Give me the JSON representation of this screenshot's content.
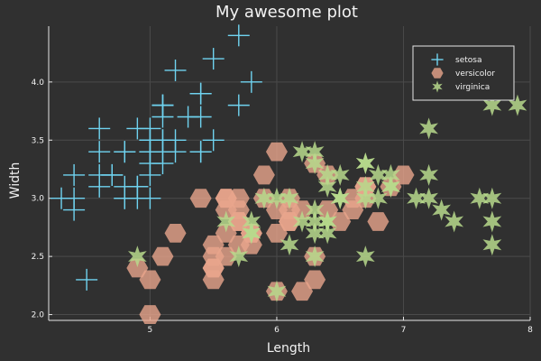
{
  "chart_data": {
    "type": "scatter",
    "title": "My awesome plot",
    "xlabel": "Length",
    "ylabel": "Width",
    "xlim": [
      4.2,
      8.0
    ],
    "ylim": [
      1.95,
      4.48
    ],
    "xticks": [
      5,
      6,
      7,
      8
    ],
    "yticks": [
      2.0,
      2.5,
      3.0,
      3.5,
      4.0
    ],
    "grid": true,
    "legend_position": "top-right",
    "background": "#303030",
    "series": [
      {
        "name": "setosa",
        "marker": "cross",
        "color": "#6fd3f0",
        "points": [
          [
            5.1,
            3.5
          ],
          [
            4.9,
            3.0
          ],
          [
            4.7,
            3.2
          ],
          [
            4.6,
            3.1
          ],
          [
            5.0,
            3.6
          ],
          [
            5.4,
            3.9
          ],
          [
            4.6,
            3.4
          ],
          [
            5.0,
            3.4
          ],
          [
            4.4,
            2.9
          ],
          [
            4.9,
            3.1
          ],
          [
            5.4,
            3.7
          ],
          [
            4.8,
            3.4
          ],
          [
            4.8,
            3.0
          ],
          [
            4.3,
            3.0
          ],
          [
            5.8,
            4.0
          ],
          [
            5.7,
            4.4
          ],
          [
            5.4,
            3.9
          ],
          [
            5.1,
            3.5
          ],
          [
            5.7,
            3.8
          ],
          [
            5.1,
            3.8
          ],
          [
            5.4,
            3.4
          ],
          [
            5.1,
            3.7
          ],
          [
            4.6,
            3.6
          ],
          [
            5.1,
            3.3
          ],
          [
            4.8,
            3.4
          ],
          [
            5.0,
            3.0
          ],
          [
            5.0,
            3.4
          ],
          [
            5.2,
            3.5
          ],
          [
            5.2,
            3.4
          ],
          [
            4.7,
            3.2
          ],
          [
            4.8,
            3.1
          ],
          [
            5.4,
            3.4
          ],
          [
            5.2,
            4.1
          ],
          [
            5.5,
            4.2
          ],
          [
            4.9,
            3.1
          ],
          [
            5.0,
            3.2
          ],
          [
            5.5,
            3.5
          ],
          [
            4.9,
            3.6
          ],
          [
            4.4,
            3.0
          ],
          [
            5.1,
            3.4
          ],
          [
            5.0,
            3.5
          ],
          [
            4.5,
            2.3
          ],
          [
            4.4,
            3.2
          ],
          [
            5.0,
            3.5
          ],
          [
            5.1,
            3.8
          ],
          [
            4.8,
            3.0
          ],
          [
            5.1,
            3.8
          ],
          [
            4.6,
            3.2
          ],
          [
            5.3,
            3.7
          ],
          [
            5.0,
            3.3
          ]
        ]
      },
      {
        "name": "versicolor",
        "marker": "hexagon",
        "color": "#e8a58c",
        "points": [
          [
            7.0,
            3.2
          ],
          [
            6.4,
            3.2
          ],
          [
            6.9,
            3.1
          ],
          [
            5.5,
            2.3
          ],
          [
            6.5,
            2.8
          ],
          [
            5.7,
            2.8
          ],
          [
            6.3,
            3.3
          ],
          [
            4.9,
            2.4
          ],
          [
            6.6,
            2.9
          ],
          [
            5.2,
            2.7
          ],
          [
            5.0,
            2.0
          ],
          [
            5.9,
            3.0
          ],
          [
            6.0,
            2.2
          ],
          [
            6.1,
            2.9
          ],
          [
            5.6,
            2.9
          ],
          [
            6.7,
            3.1
          ],
          [
            5.6,
            3.0
          ],
          [
            5.8,
            2.7
          ],
          [
            6.2,
            2.2
          ],
          [
            5.6,
            2.5
          ],
          [
            5.9,
            3.2
          ],
          [
            6.1,
            2.8
          ],
          [
            6.3,
            2.5
          ],
          [
            6.1,
            2.8
          ],
          [
            6.4,
            2.9
          ],
          [
            6.6,
            3.0
          ],
          [
            6.8,
            2.8
          ],
          [
            6.7,
            3.0
          ],
          [
            6.0,
            2.9
          ],
          [
            5.7,
            2.6
          ],
          [
            5.5,
            2.4
          ],
          [
            5.5,
            2.4
          ],
          [
            5.8,
            2.7
          ],
          [
            6.0,
            2.7
          ],
          [
            5.4,
            3.0
          ],
          [
            6.0,
            3.4
          ],
          [
            6.7,
            3.1
          ],
          [
            6.3,
            2.3
          ],
          [
            5.6,
            3.0
          ],
          [
            5.5,
            2.5
          ],
          [
            5.5,
            2.6
          ],
          [
            6.1,
            3.0
          ],
          [
            5.8,
            2.6
          ],
          [
            5.0,
            2.3
          ],
          [
            5.6,
            2.7
          ],
          [
            5.7,
            3.0
          ],
          [
            5.7,
            2.9
          ],
          [
            6.2,
            2.9
          ],
          [
            5.1,
            2.5
          ],
          [
            5.7,
            2.8
          ]
        ]
      },
      {
        "name": "virginica",
        "marker": "star",
        "color": "#b7d98c",
        "points": [
          [
            6.3,
            3.3
          ],
          [
            5.8,
            2.7
          ],
          [
            7.1,
            3.0
          ],
          [
            6.3,
            2.9
          ],
          [
            6.5,
            3.0
          ],
          [
            7.6,
            3.0
          ],
          [
            4.9,
            2.5
          ],
          [
            7.3,
            2.9
          ],
          [
            6.7,
            2.5
          ],
          [
            7.2,
            3.6
          ],
          [
            6.5,
            3.2
          ],
          [
            6.4,
            2.7
          ],
          [
            6.8,
            3.0
          ],
          [
            5.7,
            2.5
          ],
          [
            5.8,
            2.8
          ],
          [
            6.4,
            3.2
          ],
          [
            6.5,
            3.0
          ],
          [
            7.7,
            3.8
          ],
          [
            7.7,
            2.6
          ],
          [
            6.0,
            2.2
          ],
          [
            6.9,
            3.2
          ],
          [
            5.6,
            2.8
          ],
          [
            7.7,
            2.8
          ],
          [
            6.3,
            2.7
          ],
          [
            6.7,
            3.3
          ],
          [
            7.2,
            3.2
          ],
          [
            6.2,
            2.8
          ],
          [
            6.1,
            3.0
          ],
          [
            6.4,
            2.8
          ],
          [
            7.2,
            3.0
          ],
          [
            7.4,
            2.8
          ],
          [
            7.9,
            3.8
          ],
          [
            6.4,
            2.8
          ],
          [
            6.3,
            2.8
          ],
          [
            6.1,
            2.6
          ],
          [
            7.7,
            3.0
          ],
          [
            6.3,
            3.4
          ],
          [
            6.4,
            3.1
          ],
          [
            6.0,
            3.0
          ],
          [
            6.9,
            3.1
          ],
          [
            6.7,
            3.1
          ],
          [
            6.9,
            3.1
          ],
          [
            5.8,
            2.7
          ],
          [
            6.8,
            3.2
          ],
          [
            6.7,
            3.3
          ],
          [
            6.7,
            3.0
          ],
          [
            6.3,
            2.5
          ],
          [
            6.5,
            3.0
          ],
          [
            6.2,
            3.4
          ],
          [
            5.9,
            3.0
          ]
        ]
      }
    ]
  }
}
